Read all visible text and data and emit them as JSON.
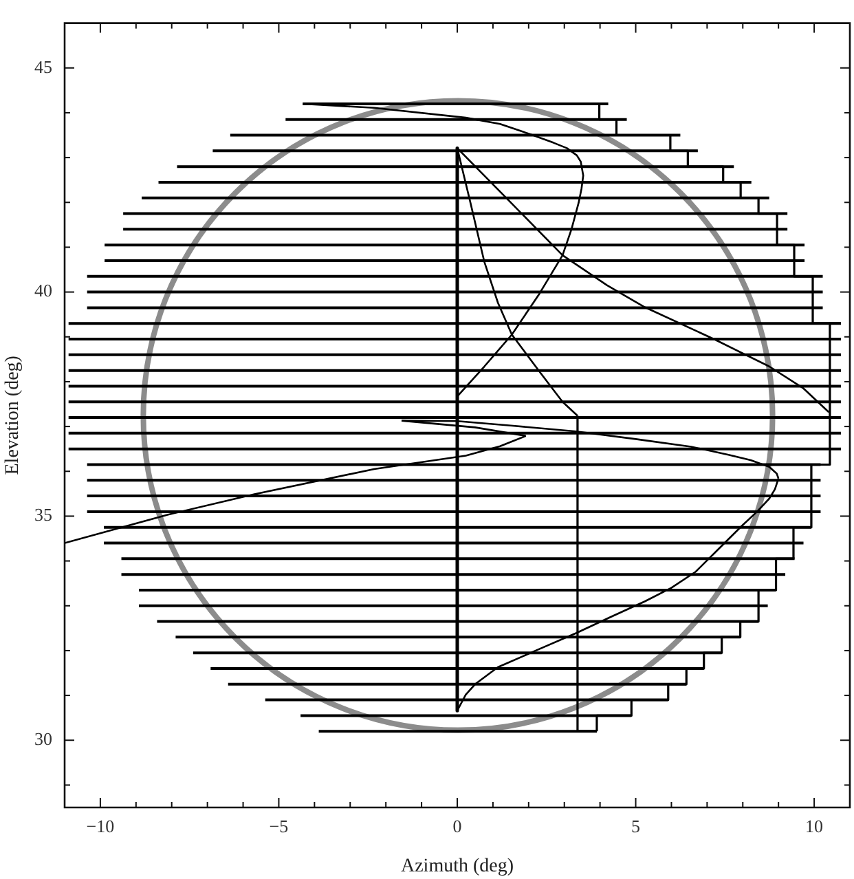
{
  "chart_data": {
    "type": "line",
    "xlabel": "Azimuth (deg)",
    "ylabel": "Elevation (deg)",
    "xlim": [
      -11,
      11
    ],
    "ylim": [
      28.5,
      46
    ],
    "xticks": [
      {
        "value": -10,
        "label": "−10"
      },
      {
        "value": -9,
        "label": null
      },
      {
        "value": -8,
        "label": null
      },
      {
        "value": -7,
        "label": null
      },
      {
        "value": -6,
        "label": null
      },
      {
        "value": -5,
        "label": "−5"
      },
      {
        "value": -4,
        "label": null
      },
      {
        "value": -3,
        "label": null
      },
      {
        "value": -2,
        "label": null
      },
      {
        "value": -1,
        "label": null
      },
      0,
      {
        "value": 1,
        "label": null
      },
      {
        "value": 2,
        "label": null
      },
      {
        "value": 3,
        "label": null
      },
      {
        "value": 4,
        "label": null
      },
      5,
      {
        "value": 6,
        "label": null
      },
      {
        "value": 7,
        "label": null
      },
      {
        "value": 8,
        "label": null
      },
      {
        "value": 9,
        "label": null
      },
      10
    ],
    "yticks": [
      {
        "value": 29,
        "label": null
      },
      30,
      {
        "value": 31,
        "label": null
      },
      {
        "value": 32,
        "label": null
      },
      {
        "value": 33,
        "label": null
      },
      {
        "value": 34,
        "label": null
      },
      35,
      {
        "value": 36,
        "label": null
      },
      {
        "value": 37,
        "label": null
      },
      {
        "value": 38,
        "label": null
      },
      {
        "value": 39,
        "label": null
      },
      40,
      {
        "value": 41,
        "label": null
      },
      {
        "value": 42,
        "label": null
      },
      {
        "value": 43,
        "label": null
      },
      {
        "value": 44,
        "label": null
      },
      45
    ],
    "series": [
      {
        "color": "#000000",
        "x": [
          -4.33,
          4.23
        ],
        "values": [
          44.2,
          44.2
        ]
      },
      {
        "color": "#000000",
        "x": [
          -4.81,
          4.75
        ],
        "values": [
          43.85,
          43.85
        ]
      },
      {
        "color": "#000000",
        "x": [
          -6.36,
          6.25
        ],
        "values": [
          43.5,
          43.5
        ]
      },
      {
        "color": "#000000",
        "x": [
          -6.85,
          6.74
        ],
        "values": [
          43.15,
          43.15
        ]
      },
      {
        "color": "#000000",
        "x": [
          -7.85,
          7.75
        ],
        "values": [
          42.8,
          42.8
        ]
      },
      {
        "color": "#000000",
        "x": [
          -8.37,
          8.24
        ],
        "values": [
          42.45,
          42.45
        ]
      },
      {
        "color": "#000000",
        "x": [
          -8.84,
          8.74
        ],
        "values": [
          42.1,
          42.1
        ]
      },
      {
        "color": "#000000",
        "x": [
          -9.36,
          9.25
        ],
        "values": [
          41.75,
          41.75
        ]
      },
      {
        "color": "#000000",
        "x": [
          -9.36,
          9.25
        ],
        "values": [
          41.4,
          41.4
        ]
      },
      {
        "color": "#000000",
        "x": [
          -9.88,
          9.73
        ],
        "values": [
          41.05,
          41.05
        ]
      },
      {
        "color": "#000000",
        "x": [
          -9.88,
          9.73
        ],
        "values": [
          40.7,
          40.7
        ]
      },
      {
        "color": "#000000",
        "x": [
          -10.37,
          10.24
        ],
        "values": [
          40.35,
          40.35
        ]
      },
      {
        "color": "#000000",
        "x": [
          -10.37,
          10.24
        ],
        "values": [
          40,
          40
        ]
      },
      {
        "color": "#000000",
        "x": [
          -10.37,
          10.24
        ],
        "values": [
          39.65,
          39.65
        ]
      },
      {
        "color": "#000000",
        "x": [
          -10.89,
          10.75
        ],
        "values": [
          39.3,
          39.3
        ]
      },
      {
        "color": "#000000",
        "x": [
          -10.89,
          10.75
        ],
        "values": [
          38.95,
          38.95
        ]
      },
      {
        "color": "#000000",
        "x": [
          -10.89,
          10.75
        ],
        "values": [
          38.6,
          38.6
        ]
      },
      {
        "color": "#000000",
        "x": [
          -10.89,
          10.75
        ],
        "values": [
          38.25,
          38.25
        ]
      },
      {
        "color": "#000000",
        "x": [
          -10.89,
          10.75
        ],
        "values": [
          37.9,
          37.9
        ]
      },
      {
        "color": "#000000",
        "x": [
          -10.89,
          10.75
        ],
        "values": [
          37.55,
          37.55
        ]
      },
      {
        "color": "#000000",
        "x": [
          -10.89,
          10.75
        ],
        "values": [
          37.2,
          37.2
        ]
      },
      {
        "color": "#000000",
        "x": [
          -10.89,
          10.75
        ],
        "values": [
          36.85,
          36.85
        ]
      },
      {
        "color": "#000000",
        "x": [
          -10.89,
          10.75
        ],
        "values": [
          36.5,
          36.5
        ]
      },
      {
        "color": "#000000",
        "x": [
          -10.37,
          10.18
        ],
        "values": [
          36.15,
          36.15
        ]
      },
      {
        "color": "#000000",
        "x": [
          -10.37,
          10.18
        ],
        "values": [
          35.8,
          35.8
        ]
      },
      {
        "color": "#000000",
        "x": [
          -10.37,
          10.18
        ],
        "values": [
          35.45,
          35.45
        ]
      },
      {
        "color": "#000000",
        "x": [
          -10.37,
          10.18
        ],
        "values": [
          35.1,
          35.1
        ]
      },
      {
        "color": "#000000",
        "x": [
          -9.9,
          9.92
        ],
        "values": [
          34.75,
          34.75
        ]
      },
      {
        "color": "#000000",
        "x": [
          -9.9,
          9.7
        ],
        "values": [
          34.4,
          34.4
        ]
      },
      {
        "color": "#000000",
        "x": [
          -9.41,
          9.45
        ],
        "values": [
          34.05,
          34.05
        ]
      },
      {
        "color": "#000000",
        "x": [
          -9.41,
          9.19
        ],
        "values": [
          33.7,
          33.7
        ]
      },
      {
        "color": "#000000",
        "x": [
          -8.92,
          8.93
        ],
        "values": [
          33.35,
          33.35
        ]
      },
      {
        "color": "#000000",
        "x": [
          -8.92,
          8.7
        ],
        "values": [
          33,
          33
        ]
      },
      {
        "color": "#000000",
        "x": [
          -8.41,
          8.44
        ],
        "values": [
          32.65,
          32.65
        ]
      },
      {
        "color": "#000000",
        "x": [
          -7.89,
          7.93
        ],
        "values": [
          32.3,
          32.3
        ]
      },
      {
        "color": "#000000",
        "x": [
          -7.4,
          7.41
        ],
        "values": [
          31.95,
          31.95
        ]
      },
      {
        "color": "#000000",
        "x": [
          -6.91,
          6.91
        ],
        "values": [
          31.6,
          31.6
        ]
      },
      {
        "color": "#000000",
        "x": [
          -6.42,
          6.42
        ],
        "values": [
          31.25,
          31.25
        ]
      },
      {
        "color": "#000000",
        "x": [
          -5.38,
          5.91
        ],
        "values": [
          30.9,
          30.9
        ]
      },
      {
        "color": "#000000",
        "x": [
          -4.39,
          4.88
        ],
        "values": [
          30.55,
          30.55
        ]
      },
      {
        "color": "#000000",
        "x": [
          -3.88,
          3.91
        ],
        "values": [
          30.2,
          30.2
        ]
      },
      {
        "type": "step",
        "color": "#000000",
        "x": [
          3.98,
          4.46,
          5.97,
          6.46,
          7.45,
          7.94,
          8.44,
          8.96,
          9.44,
          9.96,
          10.44
        ],
        "values": [
          44.2,
          43.85,
          43.5,
          43.15,
          42.8,
          42.45,
          42.1,
          41.75,
          41.05,
          40.35,
          39.3
        ]
      },
      {
        "type": "step",
        "color": "#000000",
        "x": [
          3.91,
          4.88,
          5.91,
          6.42,
          6.91,
          7.41,
          7.93,
          8.44,
          8.93,
          9.42,
          9.92,
          10.44,
          10.75
        ],
        "values": [
          30.2,
          30.55,
          30.9,
          31.25,
          31.6,
          31.95,
          32.3,
          32.65,
          33.35,
          34.05,
          34.75,
          36.15,
          39.3
        ]
      },
      {
        "color": "#000000",
        "x": [
          0,
          0
        ],
        "values": [
          43.21,
          30.66
        ]
      },
      {
        "color": "#000000",
        "x": [
          0,
          1.2,
          2.95,
          4.2,
          5.26,
          7.19,
          8.74,
          9.7,
          10.41
        ],
        "values": [
          43.21,
          42.24,
          40.82,
          40.15,
          39.66,
          38.95,
          38.34,
          37.85,
          37.32
        ]
      },
      {
        "color": "#000000",
        "x": [
          -4.32,
          -2.33,
          0.24,
          1.2,
          2.05,
          2.7,
          3.07,
          3.35,
          3.46,
          3.53,
          3.48,
          3.4,
          3.2,
          2.95,
          2.3,
          1.53,
          0.76,
          0
        ],
        "values": [
          44.2,
          44.11,
          43.89,
          43.75,
          43.52,
          43.33,
          43.21,
          43.05,
          42.91,
          42.6,
          42.3,
          41.99,
          41.4,
          40.82,
          39.96,
          39.05,
          38.34,
          37.67
        ]
      },
      {
        "color": "#000000",
        "x": [
          0,
          0.37,
          0.76,
          1.14,
          1.53,
          2.3,
          2.95,
          3.37
        ],
        "values": [
          43.21,
          41.99,
          40.67,
          39.76,
          39.05,
          38.23,
          37.55,
          37.24
        ]
      },
      {
        "type": "step",
        "color": "#000000",
        "x": [
          3.37,
          3.91
        ],
        "values": [
          37.24,
          30.2
        ]
      },
      {
        "color": "#000000",
        "x": [
          -11,
          -8.12,
          -5.68,
          -2.33,
          0.24,
          1.2,
          1.92
        ],
        "values": [
          34.4,
          35.03,
          35.49,
          36.05,
          36.35,
          36.56,
          36.79
        ]
      },
      {
        "color": "#000000",
        "x": [
          -1.56,
          0.5,
          1.92
        ],
        "values": [
          37.13,
          36.98,
          36.79
        ]
      },
      {
        "color": "#000000",
        "x": [
          -1.56,
          0,
          1.5,
          3.33,
          5,
          6.55,
          7.6,
          8.22,
          8.74,
          8.95,
          9.0
        ],
        "values": [
          37.13,
          37.12,
          37.02,
          36.89,
          36.72,
          36.55,
          36.37,
          36.25,
          36.1,
          35.95,
          35.84
        ]
      },
      {
        "color": "#000000",
        "x": [
          0,
          0.24,
          0.5,
          1.14,
          2.2,
          3.33,
          4.3,
          5.26,
          6,
          6.68,
          7.3,
          7.97,
          8.4,
          8.74,
          8.9,
          9.0
        ],
        "values": [
          30.66,
          31.02,
          31.25,
          31.63,
          32.0,
          32.39,
          32.75,
          33.1,
          33.4,
          33.76,
          34.25,
          34.78,
          35.1,
          35.39,
          35.6,
          35.84
        ]
      }
    ]
  }
}
